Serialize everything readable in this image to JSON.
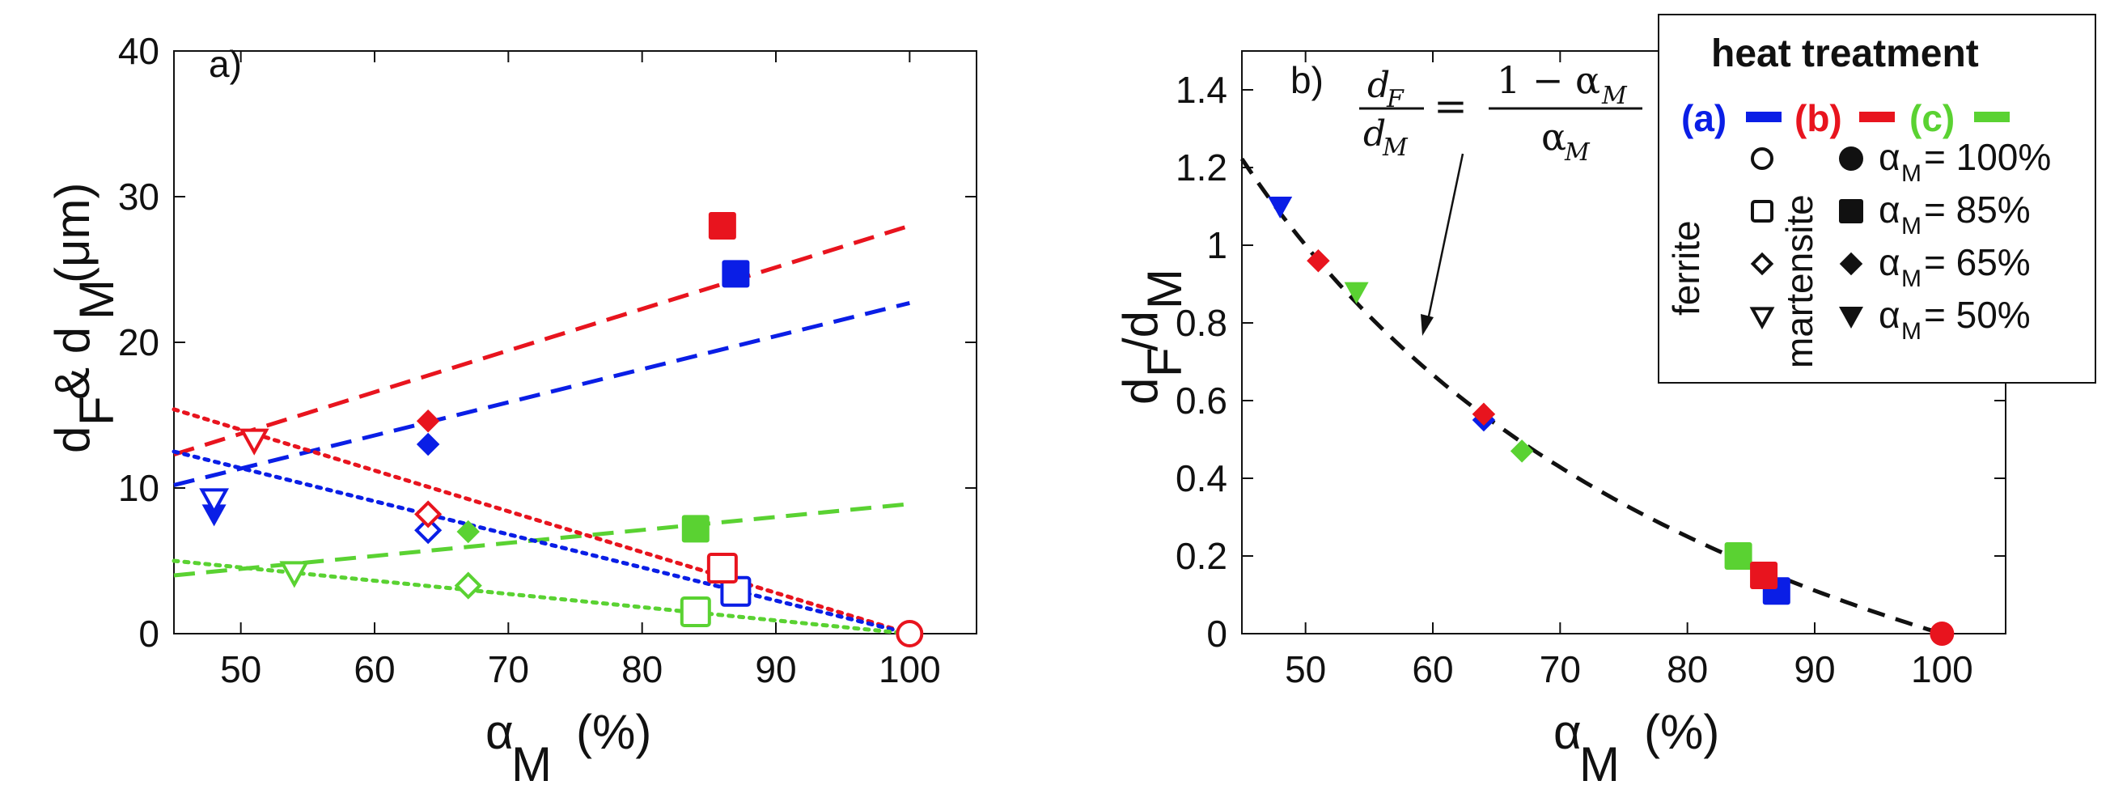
{
  "colors": {
    "a": "#0a1ee6",
    "b": "#e8141e",
    "c": "#5ad232",
    "black": "#111111"
  },
  "chart_data": [
    {
      "type": "scatter",
      "panel_label": "a)",
      "xlabel_main": "α",
      "xlabel_sub": "M",
      "xlabel_unit": "(%)",
      "ylabel_parts": [
        "d",
        "F",
        " & d",
        "M",
        "(μm)"
      ],
      "xlim": [
        45,
        105
      ],
      "ylim": [
        0,
        40
      ],
      "xticks": [
        50,
        60,
        70,
        80,
        90,
        100
      ],
      "yticks": [
        0,
        10,
        20,
        30,
        40
      ],
      "series": [
        {
          "name": "martensite (a)",
          "color": "a",
          "filled": true,
          "points": [
            {
              "x": 48,
              "y": 8.2,
              "m": "tri"
            },
            {
              "x": 64,
              "y": 13,
              "m": "dia"
            },
            {
              "x": 87,
              "y": 24.7,
              "m": "sq"
            }
          ]
        },
        {
          "name": "martensite (b)",
          "color": "b",
          "filled": true,
          "points": [
            {
              "x": 64,
              "y": 14.6,
              "m": "dia"
            },
            {
              "x": 86,
              "y": 28,
              "m": "sq"
            }
          ]
        },
        {
          "name": "martensite (c)",
          "color": "c",
          "filled": true,
          "points": [
            {
              "x": 67,
              "y": 7,
              "m": "dia"
            },
            {
              "x": 84,
              "y": 7.2,
              "m": "sq"
            }
          ]
        },
        {
          "name": "ferrite (a)",
          "color": "a",
          "filled": false,
          "points": [
            {
              "x": 48,
              "y": 9.2,
              "m": "tri"
            },
            {
              "x": 64,
              "y": 7.1,
              "m": "dia"
            },
            {
              "x": 87,
              "y": 2.9,
              "m": "sq"
            }
          ]
        },
        {
          "name": "ferrite (b)",
          "color": "b",
          "filled": false,
          "points": [
            {
              "x": 51,
              "y": 13.3,
              "m": "tri"
            },
            {
              "x": 64,
              "y": 8.2,
              "m": "dia"
            },
            {
              "x": 86,
              "y": 4.5,
              "m": "sq"
            },
            {
              "x": 100,
              "y": 0,
              "m": "circ"
            }
          ]
        },
        {
          "name": "ferrite (c)",
          "color": "c",
          "filled": false,
          "points": [
            {
              "x": 54,
              "y": 4.2,
              "m": "tri"
            },
            {
              "x": 67,
              "y": 3.3,
              "m": "dia"
            },
            {
              "x": 84,
              "y": 1.5,
              "m": "sq"
            }
          ]
        }
      ],
      "fit_lines": [
        {
          "color": "b",
          "style": "dashed",
          "x": [
            45,
            100
          ],
          "y": [
            12.3,
            28
          ]
        },
        {
          "color": "a",
          "style": "dashed",
          "x": [
            45,
            100
          ],
          "y": [
            10.2,
            22.7
          ]
        },
        {
          "color": "c",
          "style": "dashed",
          "x": [
            45,
            100
          ],
          "y": [
            4,
            8.9
          ]
        },
        {
          "color": "b",
          "style": "dotted",
          "x": [
            45,
            100
          ],
          "y": [
            15.4,
            0
          ]
        },
        {
          "color": "a",
          "style": "dotted",
          "x": [
            45,
            100
          ],
          "y": [
            12.5,
            0
          ]
        },
        {
          "color": "c",
          "style": "dotted",
          "x": [
            45,
            100
          ],
          "y": [
            5,
            0
          ]
        }
      ]
    },
    {
      "type": "scatter",
      "panel_label": "b)",
      "xlabel_main": "α",
      "xlabel_sub": "M",
      "xlabel_unit": "(%)",
      "ylabel_parts": [
        "d",
        "F",
        "/d",
        "M"
      ],
      "xlim": [
        45,
        105
      ],
      "ylim": [
        0,
        1.5
      ],
      "xticks": [
        50,
        60,
        70,
        80,
        90,
        100
      ],
      "yticks": [
        0,
        0.2,
        0.4,
        0.6,
        0.8,
        1,
        1.2,
        1.4
      ],
      "ytick_labels": [
        "0",
        "0.2",
        "0.4",
        "0.6",
        "0.8",
        "1",
        "1.2",
        "1.4"
      ],
      "curve": {
        "color": "black",
        "style": "dashed",
        "formula": "dF/dM = (1 − αM)/αM",
        "x_range": [
          45,
          100
        ]
      },
      "points": [
        {
          "x": 48,
          "y": 1.1,
          "color": "a",
          "m": "tri"
        },
        {
          "x": 51,
          "y": 0.96,
          "color": "b",
          "m": "dia"
        },
        {
          "x": 54,
          "y": 0.88,
          "color": "c",
          "m": "tri"
        },
        {
          "x": 64,
          "y": 0.55,
          "color": "a",
          "m": "dia"
        },
        {
          "x": 64,
          "y": 0.565,
          "color": "b",
          "m": "dia"
        },
        {
          "x": 67,
          "y": 0.47,
          "color": "c",
          "m": "dia"
        },
        {
          "x": 84,
          "y": 0.2,
          "color": "c",
          "m": "sq"
        },
        {
          "x": 87,
          "y": 0.11,
          "color": "a",
          "m": "sq"
        },
        {
          "x": 86,
          "y": 0.15,
          "color": "b",
          "m": "sq"
        },
        {
          "x": 100,
          "y": 0,
          "color": "b",
          "m": "circ"
        }
      ],
      "formula": {
        "lhs_num": "d",
        "lhs_num_sub": "F",
        "lhs_den": "d",
        "lhs_den_sub": "M",
        "eq": "=",
        "rhs_num": "1 − α",
        "rhs_num_sub": "M",
        "rhs_den": "α",
        "rhs_den_sub": "M"
      },
      "legend": {
        "title": "heat treatment",
        "groups": [
          {
            "label": "(a)",
            "color": "a"
          },
          {
            "label": "(b)",
            "color": "b"
          },
          {
            "label": "(c)",
            "color": "c"
          }
        ],
        "ferrite_label": "ferrite",
        "martensite_label": "martensite",
        "rows": [
          {
            "m": "circ",
            "text": "α",
            "sub": "M",
            "value": " = 100%"
          },
          {
            "m": "sq",
            "text": "α",
            "sub": "M",
            "value": " = 85%"
          },
          {
            "m": "dia",
            "text": "α",
            "sub": "M",
            "value": " = 65%"
          },
          {
            "m": "tri",
            "text": "α",
            "sub": "M",
            "value": " = 50%"
          }
        ]
      }
    }
  ]
}
